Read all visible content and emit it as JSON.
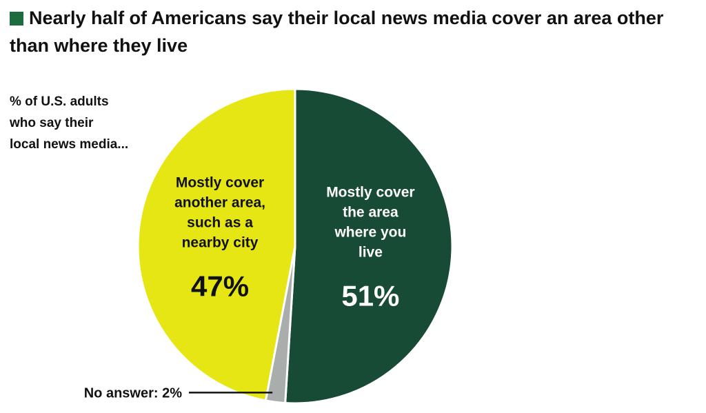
{
  "title": "Nearly half of Americans say their local news media cover an area other than where they live",
  "colors": {
    "title_marker": "#1e6b3e",
    "live": "#174b35",
    "another": "#e5e614",
    "no_answer": "#a9aeac"
  },
  "subtitle_lines": [
    "% of U.S. adults",
    "who say their",
    "local news media..."
  ],
  "chart_data": {
    "type": "pie",
    "slices": [
      {
        "label_lines": [
          "Mostly cover",
          "the area",
          "where you",
          "live"
        ],
        "value": 51,
        "value_label": "51%",
        "color": "#174b35",
        "text_color": "#ffffff"
      },
      {
        "label_lines": [],
        "value": 2,
        "value_label": "No answer: 2%",
        "color": "#a9aeac",
        "text_color": "#111111"
      },
      {
        "label_lines": [
          "Mostly cover",
          "another area,",
          "such as a",
          "nearby city"
        ],
        "value": 47,
        "value_label": "47%",
        "color": "#e5e614",
        "text_color": "#111111"
      }
    ]
  }
}
